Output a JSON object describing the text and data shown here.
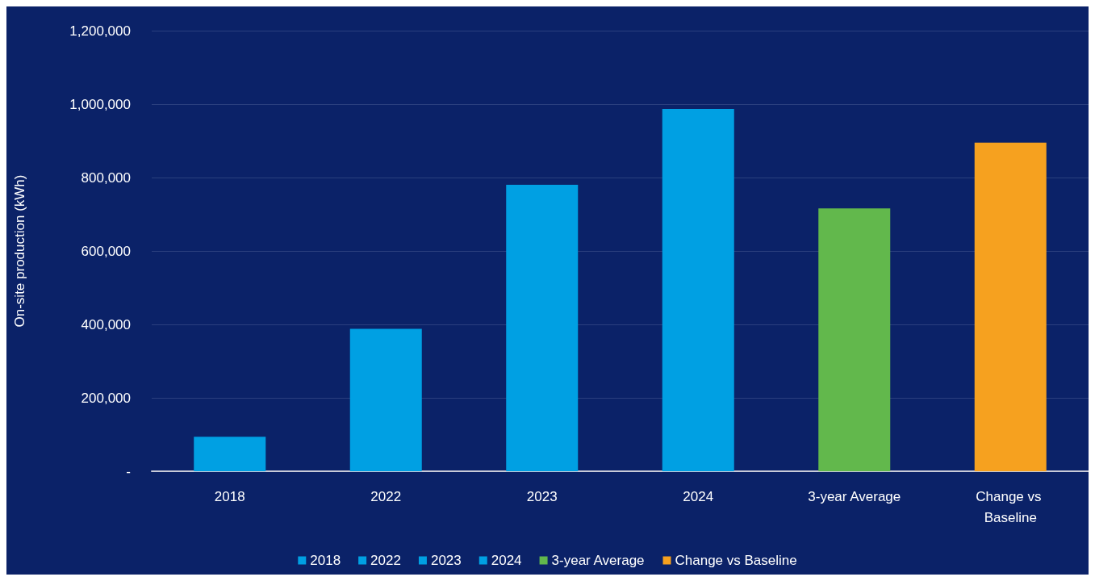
{
  "chart_data": {
    "type": "bar",
    "ylabel": "On-site production (kWh)",
    "categories": [
      "2018",
      "2022",
      "2023",
      "2024",
      "3-year Average",
      "Change vs Baseline"
    ],
    "series": [
      {
        "name": "2018",
        "color": "#00a0e3",
        "values": [
          94000,
          null,
          null,
          null,
          null,
          null
        ]
      },
      {
        "name": "2022",
        "color": "#00a0e3",
        "values": [
          null,
          388000,
          null,
          null,
          null,
          null
        ]
      },
      {
        "name": "2023",
        "color": "#00a0e3",
        "values": [
          null,
          null,
          780000,
          null,
          null,
          null
        ]
      },
      {
        "name": "2024",
        "color": "#00a0e3",
        "values": [
          null,
          null,
          null,
          987000,
          null,
          null
        ]
      },
      {
        "name": "3-year Average",
        "color": "#62b84c",
        "values": [
          null,
          null,
          null,
          null,
          716000,
          null
        ]
      },
      {
        "name": "Change vs Baseline",
        "color": "#f6a11f",
        "values": [
          null,
          null,
          null,
          null,
          null,
          895000
        ]
      }
    ],
    "ylim": [
      0,
      1200000
    ],
    "yticks": [
      {
        "value": 0,
        "label": "-"
      },
      {
        "value": 200000,
        "label": "200,000"
      },
      {
        "value": 400000,
        "label": "400,000"
      },
      {
        "value": 600000,
        "label": "600,000"
      },
      {
        "value": 800000,
        "label": "800,000"
      },
      {
        "value": 1000000,
        "label": "1,000,000"
      },
      {
        "value": 1200000,
        "label": "1,200,000"
      }
    ],
    "grid": "y",
    "legend": "bottom"
  }
}
